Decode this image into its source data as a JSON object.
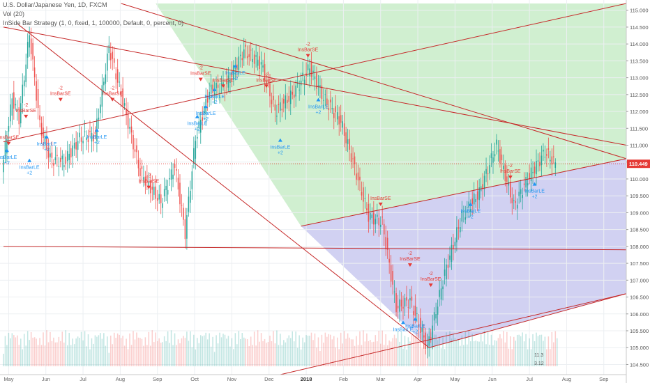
{
  "header": {
    "symbol": "U.S. Dollar/Japanese Yen, 1D, FXCM",
    "volume_indicator": "Vol (20)",
    "strategy": "InSide Bar Strategy (1, 0, fixed, 1, 100000, Default, 0, percent, 0)"
  },
  "colors": {
    "up": "#26a69a",
    "down": "#ef5350",
    "wedge_top": "#c8ecc8",
    "wedge_bottom": "#c9c9f0",
    "long_signal": "#2196f3",
    "short_signal": "#e53935",
    "trendline": "#c62828",
    "price_badge": "#e53935"
  },
  "chart_data": {
    "type": "candlestick",
    "x_tick_labels": [
      "May",
      "Jun",
      "Jul",
      "Aug",
      "Sep",
      "Oct",
      "Nov",
      "Dec",
      "2018",
      "Feb",
      "Mar",
      "Apr",
      "May",
      "Jun",
      "Jul",
      "Aug",
      "Sep"
    ],
    "y_ticks": [
      "115.000",
      "114.500",
      "114.000",
      "113.500",
      "113.000",
      "112.500",
      "112.000",
      "111.500",
      "111.000",
      "110.500",
      "110.000",
      "109.500",
      "109.000",
      "108.500",
      "108.000",
      "107.500",
      "107.000",
      "106.500",
      "106.000",
      "105.500",
      "105.000",
      "104.500"
    ],
    "ylim": [
      104.2,
      115.2
    ],
    "current_price": "110.449",
    "current_price_value": 110.449,
    "price_series": [
      {
        "t": 0,
        "p": 110.2
      },
      {
        "t": 6,
        "p": 112.4
      },
      {
        "t": 10,
        "p": 111.8
      },
      {
        "t": 16,
        "p": 114.3
      },
      {
        "t": 22,
        "p": 111.6
      },
      {
        "t": 28,
        "p": 110.6
      },
      {
        "t": 36,
        "p": 110.5
      },
      {
        "t": 45,
        "p": 111.2
      },
      {
        "t": 54,
        "p": 111.3
      },
      {
        "t": 62,
        "p": 113.9
      },
      {
        "t": 70,
        "p": 112.3
      },
      {
        "t": 80,
        "p": 110.2
      },
      {
        "t": 92,
        "p": 109.3
      },
      {
        "t": 100,
        "p": 110.4
      },
      {
        "t": 106,
        "p": 108.4
      },
      {
        "t": 112,
        "p": 111.2
      },
      {
        "t": 120,
        "p": 112.6
      },
      {
        "t": 130,
        "p": 112.8
      },
      {
        "t": 140,
        "p": 113.8
      },
      {
        "t": 150,
        "p": 113.4
      },
      {
        "t": 158,
        "p": 112.0
      },
      {
        "t": 168,
        "p": 112.5
      },
      {
        "t": 178,
        "p": 113.3
      },
      {
        "t": 186,
        "p": 112.4
      },
      {
        "t": 196,
        "p": 111.7
      },
      {
        "t": 203,
        "p": 110.5
      },
      {
        "t": 212,
        "p": 108.9
      },
      {
        "t": 220,
        "p": 108.7
      },
      {
        "t": 228,
        "p": 106.2
      },
      {
        "t": 236,
        "p": 106.4
      },
      {
        "t": 246,
        "p": 105.0
      },
      {
        "t": 256,
        "p": 107.2
      },
      {
        "t": 266,
        "p": 108.9
      },
      {
        "t": 276,
        "p": 109.6
      },
      {
        "t": 286,
        "p": 111.0
      },
      {
        "t": 296,
        "p": 109.2
      },
      {
        "t": 304,
        "p": 110.0
      },
      {
        "t": 314,
        "p": 110.8
      },
      {
        "t": 320,
        "p": 110.45
      }
    ],
    "signals": [
      {
        "type": "long",
        "t": 2,
        "p": 110.8,
        "label": "InsBarLE",
        "qty": "+2"
      },
      {
        "type": "short",
        "t": 3,
        "p": 111.1,
        "label": "InsBarSE",
        "qty": ""
      },
      {
        "type": "short",
        "t": 13,
        "p": 111.9,
        "label": "InsBarSE",
        "qty": "-2"
      },
      {
        "type": "long",
        "t": 15,
        "p": 110.5,
        "label": "InsBarLE",
        "qty": "+2"
      },
      {
        "type": "long",
        "t": 25,
        "p": 111.2,
        "label": "InsBarLE",
        "qty": "+2"
      },
      {
        "type": "short",
        "t": 33,
        "p": 112.4,
        "label": "InsBarSE",
        "qty": "-2"
      },
      {
        "type": "long",
        "t": 54,
        "p": 111.4,
        "label": "InsBarLE",
        "qty": "+2"
      },
      {
        "type": "short",
        "t": 63,
        "p": 112.4,
        "label": "InsBarSE",
        "qty": "-2"
      },
      {
        "type": "short",
        "t": 84,
        "p": 109.8,
        "label": "InsBarSE",
        "qty": "-2"
      },
      {
        "type": "long",
        "t": 112,
        "p": 111.8,
        "label": "InsBarLE",
        "qty": "+2"
      },
      {
        "type": "short",
        "t": 114,
        "p": 113.0,
        "label": "InsBarSE",
        "qty": "-2"
      },
      {
        "type": "long",
        "t": 117,
        "p": 112.1,
        "label": "InsBarLE",
        "qty": "+2"
      },
      {
        "type": "long",
        "t": 122,
        "p": 112.6,
        "label": "InsBarLE",
        "qty": "+2"
      },
      {
        "type": "short",
        "t": 127,
        "p": 112.8,
        "label": "InsBarSE",
        "qty": ""
      },
      {
        "type": "long",
        "t": 134,
        "p": 113.3,
        "label": "InsBarLE",
        "qty": "+2"
      },
      {
        "type": "short",
        "t": 152,
        "p": 112.8,
        "label": "InsBarSE",
        "qty": "-2"
      },
      {
        "type": "long",
        "t": 160,
        "p": 111.1,
        "label": "InsBarLE",
        "qty": "+2"
      },
      {
        "type": "short",
        "t": 176,
        "p": 113.7,
        "label": "InsBarSE",
        "qty": "-2"
      },
      {
        "type": "long",
        "t": 182,
        "p": 112.3,
        "label": "InsBarLE",
        "qty": "+2"
      },
      {
        "type": "short",
        "t": 218,
        "p": 109.3,
        "label": "InsBarSE",
        "qty": ""
      },
      {
        "type": "long",
        "t": 231,
        "p": 105.7,
        "label": "InsBarLE",
        "qty": ""
      },
      {
        "type": "short",
        "t": 235,
        "p": 107.5,
        "label": "InsBarSE",
        "qty": "-2"
      },
      {
        "type": "long",
        "t": 238,
        "p": 105.8,
        "label": "InsBarLE",
        "qty": "+2"
      },
      {
        "type": "short",
        "t": 247,
        "p": 106.9,
        "label": "InsBarSE",
        "qty": "-2"
      },
      {
        "type": "long",
        "t": 270,
        "p": 109.2,
        "label": "InsBarLE",
        "qty": "+2"
      },
      {
        "type": "short",
        "t": 293,
        "p": 110.1,
        "label": "InsBarSE",
        "qty": "-2"
      },
      {
        "type": "long",
        "t": 307,
        "p": 109.8,
        "label": "InsBarLE",
        "qty": "+2"
      }
    ],
    "volume_axis_labels": [
      "11.3",
      "3.12"
    ]
  }
}
